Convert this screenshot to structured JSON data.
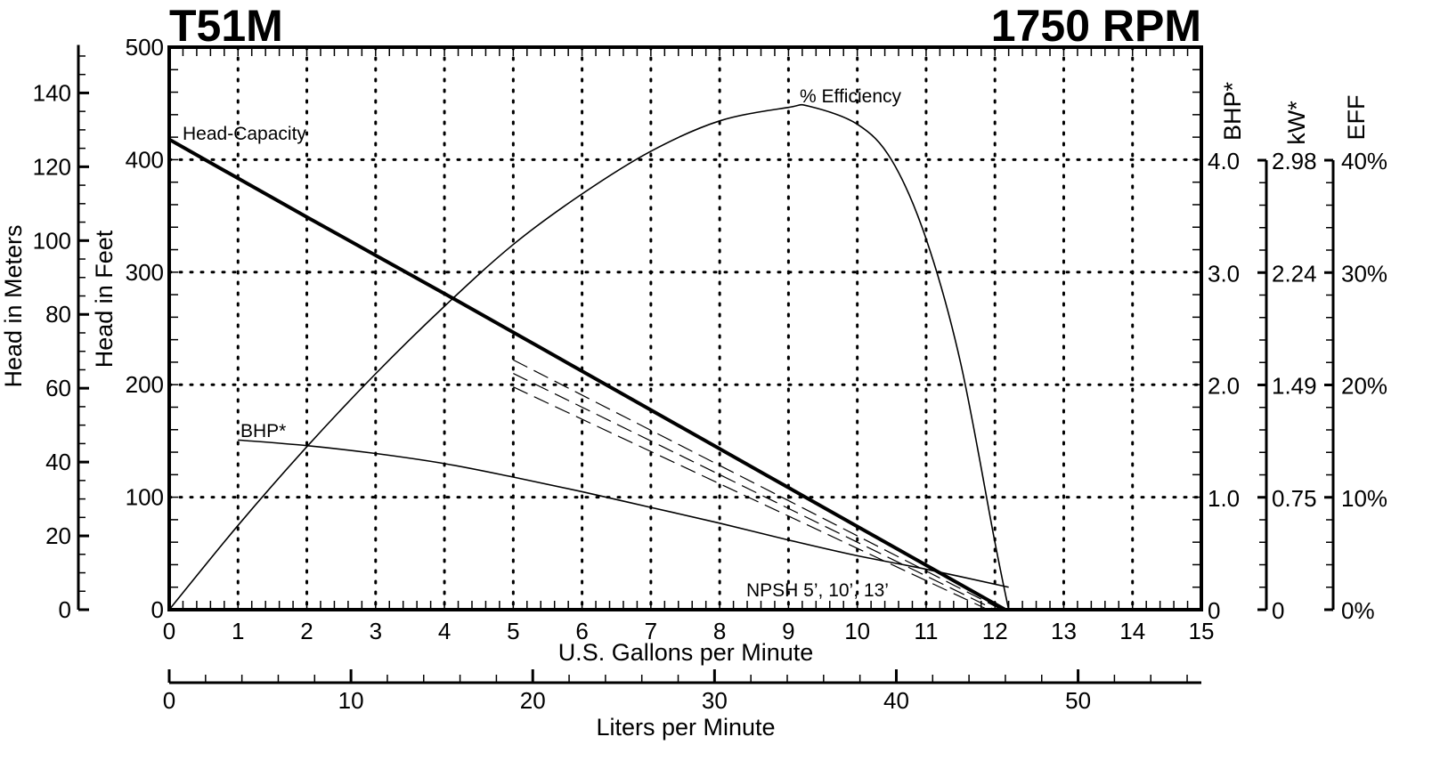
{
  "header": {
    "model": "T51M",
    "speed": "1750 RPM"
  },
  "axes": {
    "x_primary": {
      "title": "U.S. Gallons per Minute",
      "ticks": [
        "0",
        "1",
        "2",
        "3",
        "4",
        "5",
        "6",
        "7",
        "8",
        "9",
        "10",
        "11",
        "12",
        "13",
        "14",
        "15"
      ]
    },
    "x_secondary": {
      "title": "Liters per Minute",
      "ticks": [
        "0",
        "10",
        "20",
        "30",
        "40",
        "50"
      ]
    },
    "y_feet": {
      "title": "Head in Feet",
      "ticks": [
        "0",
        "100",
        "200",
        "300",
        "400",
        "500"
      ]
    },
    "y_meters": {
      "title": "Head in Meters",
      "ticks": [
        "0",
        "20",
        "40",
        "60",
        "80",
        "100",
        "120",
        "140"
      ]
    },
    "y_bhp": {
      "title": "BHP*",
      "ticks": [
        "0",
        "1.0",
        "2.0",
        "3.0",
        "4.0"
      ]
    },
    "y_kw": {
      "title": "kW*",
      "ticks": [
        "0",
        "0.75",
        "1.49",
        "2.24",
        "2.98"
      ]
    },
    "y_eff": {
      "title": "EFF",
      "ticks": [
        "0%",
        "10%",
        "20%",
        "30%",
        "40%"
      ]
    }
  },
  "labels": {
    "head_capacity": "Head-Capacity",
    "efficiency": "% Efficiency",
    "bhp": "BHP*",
    "npsh": "NPSH 5’, 10’, 13’"
  },
  "chart_data": {
    "type": "line",
    "title": "T51M 1750 RPM",
    "xlabel": "U.S. Gallons per Minute",
    "xlabel_secondary": "Liters per Minute",
    "ylabel": "Head in Feet",
    "ylabel_secondary": "Head in Meters",
    "ylabel_right": [
      "BHP*",
      "kW*",
      "EFF"
    ],
    "xlim": [
      0,
      15
    ],
    "ylim": [
      0,
      500
    ],
    "grid": true,
    "series": [
      {
        "name": "Head-Capacity",
        "axis": "feet",
        "x": [
          0,
          2,
          4,
          6,
          8,
          10,
          12.15
        ],
        "y": [
          418,
          349,
          281,
          212,
          143,
          74,
          0
        ]
      },
      {
        "name": "% Efficiency",
        "axis": "eff_percent",
        "x": [
          0,
          1,
          2,
          3,
          4,
          5,
          6,
          7,
          8,
          9,
          9.3,
          10,
          10.5,
          11,
          11.5,
          12,
          12.2
        ],
        "y": [
          0,
          7.5,
          14.5,
          21,
          27,
          32.5,
          37,
          40.8,
          43.5,
          44.7,
          44.8,
          43.2,
          40,
          33,
          22,
          6,
          0
        ]
      },
      {
        "name": "BHP*",
        "axis": "bhp",
        "x": [
          1,
          2,
          3,
          4,
          5,
          6,
          7,
          8,
          9,
          10,
          11,
          12.2
        ],
        "y": [
          1.51,
          1.46,
          1.39,
          1.3,
          1.18,
          1.05,
          0.91,
          0.77,
          0.62,
          0.48,
          0.36,
          0.2
        ]
      },
      {
        "name": "NPSH 5'",
        "axis": "feet",
        "style": "dashed",
        "x": [
          5,
          12.1
        ],
        "y": [
          222,
          0
        ]
      },
      {
        "name": "NPSH 10'",
        "axis": "feet",
        "style": "dashed",
        "x": [
          5,
          12.0
        ],
        "y": [
          210,
          0
        ]
      },
      {
        "name": "NPSH 13'",
        "axis": "feet",
        "style": "dashed",
        "x": [
          5,
          11.9
        ],
        "y": [
          198,
          0
        ]
      }
    ]
  }
}
